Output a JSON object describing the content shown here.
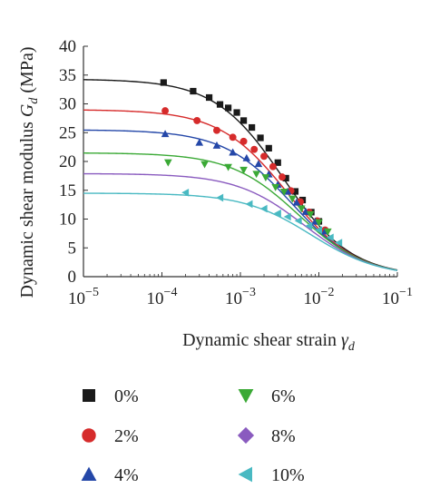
{
  "chart_data": {
    "type": "scatter",
    "title": "",
    "xlabel": "Dynamic shear strain",
    "xlabel_symbol": "γ",
    "xlabel_sub": "d",
    "ylabel": "Dynamic shear modulus",
    "ylabel_symbol": "G",
    "ylabel_sub": "d",
    "ylabel_unit": "(MPa)",
    "xscale": "log",
    "xlim": [
      1e-05,
      0.1
    ],
    "ylim": [
      0,
      40
    ],
    "x_ticks": [
      {
        "value": 1e-05,
        "base": "10",
        "exp": "−5"
      },
      {
        "value": 0.0001,
        "base": "10",
        "exp": "−4"
      },
      {
        "value": 0.001,
        "base": "10",
        "exp": "−3"
      },
      {
        "value": 0.01,
        "base": "10",
        "exp": "−2"
      },
      {
        "value": 0.1,
        "base": "10",
        "exp": "−1"
      }
    ],
    "y_ticks": [
      "0",
      "5",
      "10",
      "15",
      "20",
      "25",
      "30",
      "35",
      "40"
    ],
    "grid": false,
    "legend_position": "bottom, two columns",
    "series": [
      {
        "name": "0%",
        "marker": "square",
        "color": "#1a1a1a",
        "Gmax": 34.3,
        "gamma_ref": 0.0035,
        "points": [
          [
            0.000105,
            33.7
          ],
          [
            0.00025,
            32.2
          ],
          [
            0.0004,
            31.1
          ],
          [
            0.00055,
            29.9
          ],
          [
            0.0007,
            29.3
          ],
          [
            0.0009,
            28.5
          ],
          [
            0.0011,
            27.1
          ],
          [
            0.0014,
            25.9
          ],
          [
            0.0018,
            24.1
          ],
          [
            0.0023,
            22.3
          ],
          [
            0.003,
            19.8
          ],
          [
            0.0038,
            17.1
          ],
          [
            0.005,
            14.8
          ],
          [
            0.0062,
            13.3
          ],
          [
            0.008,
            11.2
          ],
          [
            0.01,
            9.6
          ]
        ]
      },
      {
        "name": "2%",
        "marker": "circle",
        "color": "#d62b2b",
        "Gmax": 29.0,
        "gamma_ref": 0.004,
        "points": [
          [
            0.00011,
            28.8
          ],
          [
            0.00028,
            27.1
          ],
          [
            0.0005,
            25.4
          ],
          [
            0.0008,
            24.2
          ],
          [
            0.0011,
            23.5
          ],
          [
            0.0015,
            22.1
          ],
          [
            0.002,
            20.9
          ],
          [
            0.0026,
            19.1
          ],
          [
            0.0034,
            17.3
          ],
          [
            0.0044,
            14.9
          ],
          [
            0.0058,
            13.0
          ],
          [
            0.0075,
            11.2
          ],
          [
            0.0095,
            9.7
          ],
          [
            0.012,
            8.1
          ]
        ]
      },
      {
        "name": "4%",
        "marker": "triangle-up",
        "color": "#2447a8",
        "Gmax": 25.5,
        "gamma_ref": 0.0045,
        "points": [
          [
            0.00011,
            24.8
          ],
          [
            0.0003,
            23.3
          ],
          [
            0.0005,
            22.8
          ],
          [
            0.0008,
            21.6
          ],
          [
            0.0012,
            20.6
          ],
          [
            0.0017,
            19.6
          ],
          [
            0.0023,
            17.8
          ],
          [
            0.003,
            16.0
          ],
          [
            0.004,
            14.8
          ],
          [
            0.0052,
            12.9
          ],
          [
            0.0068,
            11.3
          ],
          [
            0.009,
            9.6
          ],
          [
            0.012,
            7.9
          ]
        ]
      },
      {
        "name": "6%",
        "marker": "triangle-down",
        "color": "#3aa935",
        "Gmax": 21.5,
        "gamma_ref": 0.0055,
        "points": [
          [
            0.00012,
            19.8
          ],
          [
            0.00035,
            19.5
          ],
          [
            0.0007,
            19.0
          ],
          [
            0.0011,
            18.5
          ],
          [
            0.0016,
            17.8
          ],
          [
            0.0021,
            17.2
          ],
          [
            0.0028,
            15.5
          ],
          [
            0.0036,
            14.7
          ],
          [
            0.0046,
            13.5
          ],
          [
            0.006,
            11.8
          ],
          [
            0.0078,
            10.8
          ],
          [
            0.01,
            9.4
          ],
          [
            0.013,
            7.8
          ]
        ]
      },
      {
        "name": "8%",
        "marker": "diamond",
        "color": "#8a5bbf",
        "Gmax": 17.9,
        "gamma_ref": 0.0065,
        "points": []
      },
      {
        "name": "10%",
        "marker": "triangle-left",
        "color": "#49b9c2",
        "Gmax": 14.5,
        "gamma_ref": 0.008,
        "points": [
          [
            0.0002,
            14.6
          ],
          [
            0.00055,
            13.7
          ],
          [
            0.0013,
            12.6
          ],
          [
            0.002,
            11.8
          ],
          [
            0.003,
            11.0
          ],
          [
            0.004,
            10.4
          ],
          [
            0.0055,
            9.7
          ],
          [
            0.0075,
            8.8
          ],
          [
            0.01,
            8.1
          ],
          [
            0.014,
            6.8
          ],
          [
            0.018,
            5.9
          ]
        ]
      }
    ]
  }
}
